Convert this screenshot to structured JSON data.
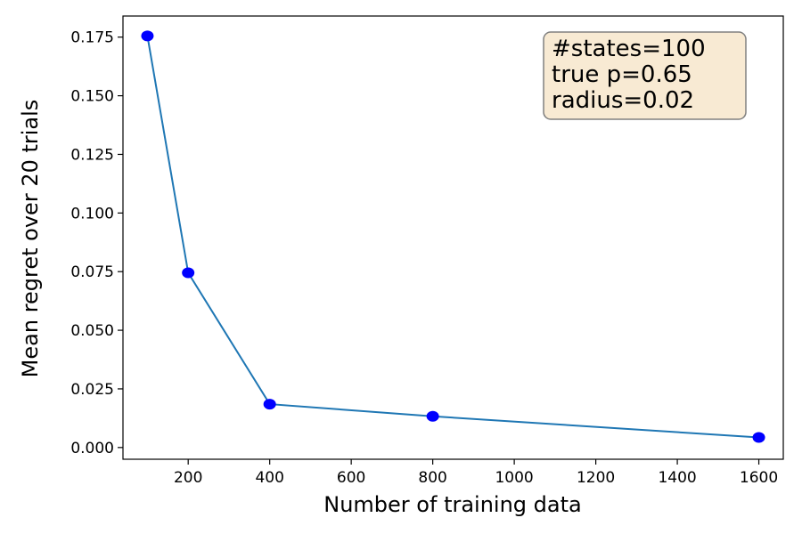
{
  "chart_data": {
    "type": "line",
    "title": "",
    "xlabel": "Number of training data",
    "ylabel": "Mean regret over 20 trials",
    "xlim": [
      40,
      1660
    ],
    "ylim": [
      -0.005,
      0.184
    ],
    "xticks": [
      200,
      400,
      600,
      800,
      1000,
      1200,
      1400,
      1600
    ],
    "xtick_labels": [
      "200",
      "400",
      "600",
      "800",
      "1000",
      "1200",
      "1400",
      "1600"
    ],
    "yticks": [
      0.0,
      0.025,
      0.05,
      0.075,
      0.1,
      0.125,
      0.15,
      0.175
    ],
    "ytick_labels": [
      "0.000",
      "0.025",
      "0.050",
      "0.075",
      "0.100",
      "0.125",
      "0.150",
      "0.175"
    ],
    "grid": false,
    "series": [
      {
        "x": [
          100,
          200,
          400,
          800,
          1600
        ],
        "y": [
          0.1755,
          0.0745,
          0.0185,
          0.0133,
          0.0043
        ],
        "line_color": "#1f77b4",
        "marker_color": "#0000ff"
      }
    ],
    "annotation": {
      "lines": [
        "#states=100",
        "true p=0.65",
        "radius=0.02"
      ],
      "placement": "top-right",
      "box_fill": "#f8ead3",
      "box_edge": "#808080"
    }
  }
}
